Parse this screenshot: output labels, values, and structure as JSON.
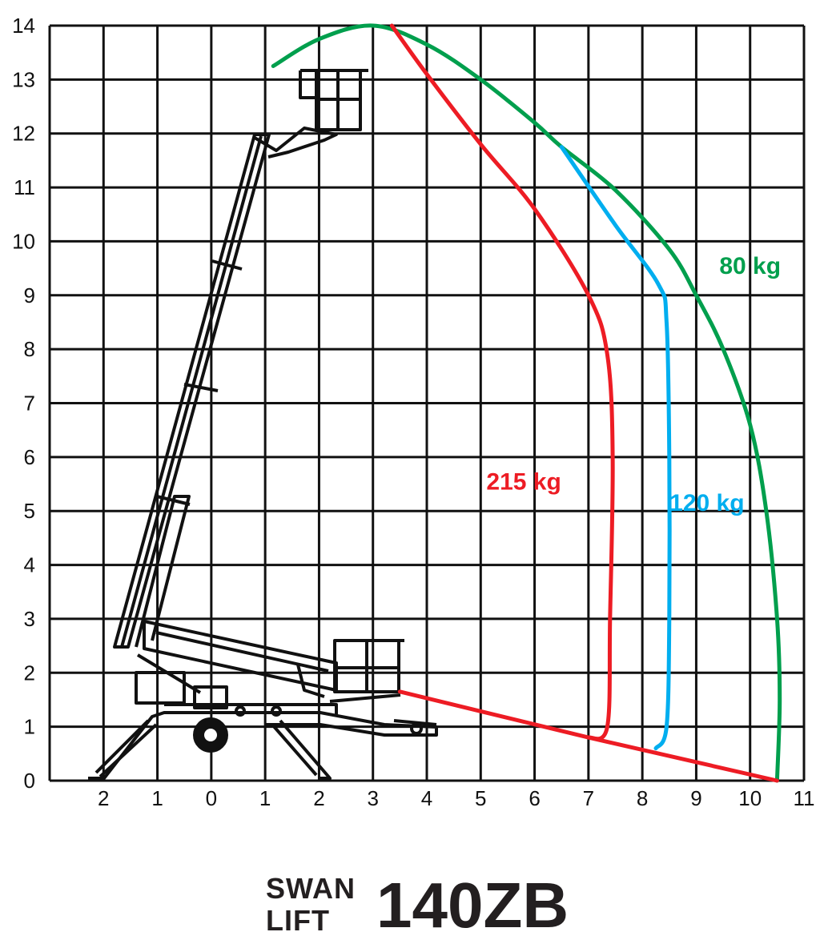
{
  "chart_data": {
    "type": "line",
    "title": "",
    "xlabel": "",
    "ylabel": "",
    "xlim": [
      -3,
      11
    ],
    "ylim": [
      0,
      14
    ],
    "grid": true,
    "x_tick_labels": [
      {
        "value": -2,
        "label": "2"
      },
      {
        "value": -1,
        "label": "1"
      },
      {
        "value": 0,
        "label": "0"
      },
      {
        "value": 1,
        "label": "1"
      },
      {
        "value": 2,
        "label": "2"
      },
      {
        "value": 3,
        "label": "3"
      },
      {
        "value": 4,
        "label": "4"
      },
      {
        "value": 5,
        "label": "5"
      },
      {
        "value": 6,
        "label": "6"
      },
      {
        "value": 7,
        "label": "7"
      },
      {
        "value": 8,
        "label": "8"
      },
      {
        "value": 9,
        "label": "9"
      },
      {
        "value": 10,
        "label": "10"
      },
      {
        "value": 11,
        "label": "11"
      }
    ],
    "y_tick_labels": [
      {
        "value": 0,
        "label": "0"
      },
      {
        "value": 1,
        "label": "1"
      },
      {
        "value": 2,
        "label": "2"
      },
      {
        "value": 3,
        "label": "3"
      },
      {
        "value": 4,
        "label": "4"
      },
      {
        "value": 5,
        "label": "5"
      },
      {
        "value": 6,
        "label": "6"
      },
      {
        "value": 7,
        "label": "7"
      },
      {
        "value": 8,
        "label": "8"
      },
      {
        "value": 9,
        "label": "9"
      },
      {
        "value": 10,
        "label": "10"
      },
      {
        "value": 11,
        "label": "11"
      },
      {
        "value": 12,
        "label": "12"
      },
      {
        "value": 13,
        "label": "13"
      },
      {
        "value": 14,
        "label": "14"
      }
    ],
    "series": [
      {
        "name": "80 kg",
        "color": "#009f4d",
        "points": [
          [
            1.15,
            13.25
          ],
          [
            2.0,
            13.75
          ],
          [
            3.0,
            14.0
          ],
          [
            4.0,
            13.65
          ],
          [
            5.0,
            13.0
          ],
          [
            6.0,
            12.2
          ],
          [
            6.5,
            11.75
          ],
          [
            7.5,
            10.95
          ],
          [
            8.5,
            9.85
          ],
          [
            9.0,
            9.0
          ],
          [
            9.5,
            8.0
          ],
          [
            10.0,
            6.6
          ],
          [
            10.3,
            5.0
          ],
          [
            10.5,
            3.0
          ],
          [
            10.55,
            1.5
          ],
          [
            10.5,
            0.0
          ]
        ],
        "label_at": [
          10.0,
          9.4
        ]
      },
      {
        "name": "120 kg",
        "color": "#00aeef",
        "points": [
          [
            6.5,
            11.75
          ],
          [
            7.5,
            10.3
          ],
          [
            8.3,
            9.2
          ],
          [
            8.45,
            8.5
          ],
          [
            8.5,
            6.0
          ],
          [
            8.5,
            3.0
          ],
          [
            8.45,
            1.0
          ],
          [
            8.25,
            0.6
          ]
        ],
        "label_at": [
          9.2,
          5.0
        ]
      },
      {
        "name": "215 kg",
        "color": "#ed1c24",
        "points": [
          [
            3.35,
            14.0
          ],
          [
            4.0,
            13.1
          ],
          [
            5.0,
            11.8
          ],
          [
            6.0,
            10.6
          ],
          [
            7.0,
            9.0
          ],
          [
            7.35,
            7.9
          ],
          [
            7.45,
            6.0
          ],
          [
            7.4,
            3.0
          ],
          [
            7.35,
            1.0
          ],
          [
            7.0,
            0.8
          ],
          [
            5.0,
            1.2
          ],
          [
            3.5,
            1.65
          ],
          [
            7.0,
            0.8
          ],
          [
            10.5,
            0.0
          ]
        ],
        "label_at": [
          5.8,
          5.4
        ]
      }
    ]
  },
  "brand": {
    "logo_top": "SWAN",
    "logo_bottom": "LIFT",
    "model": "140ZB"
  }
}
